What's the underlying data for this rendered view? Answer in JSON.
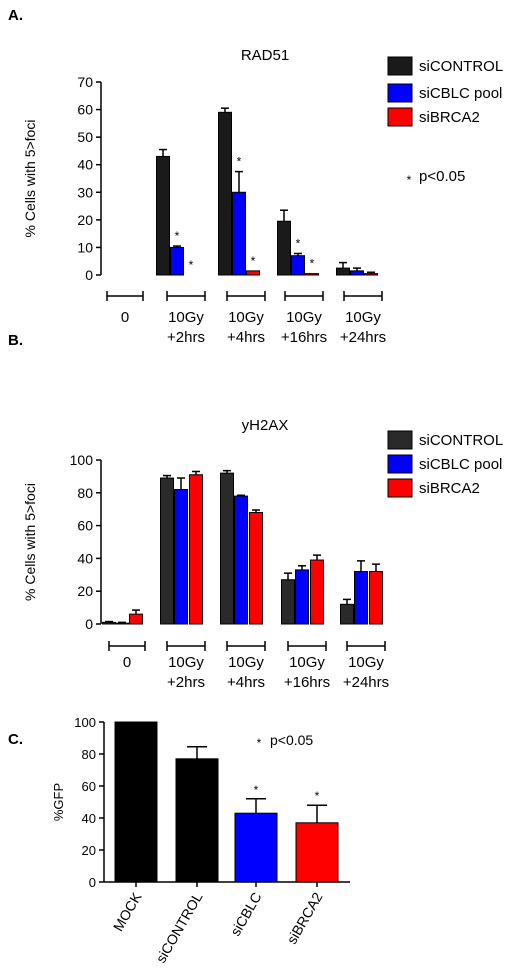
{
  "colors": {
    "siCONTROL": "#000000",
    "siCBLC": "#0000ff",
    "siBRCA2": "#ff0000",
    "mock": "#000000",
    "rad51_control": "#1a1a1a",
    "yh2ax_control": "#2a2a2a"
  },
  "chart_data": [
    {
      "panel_label": "A.",
      "type": "bar",
      "title": "RAD51",
      "ylabel": "% Cells with 5>foci",
      "ylim": [
        0,
        70
      ],
      "yticks": [
        0,
        10,
        20,
        30,
        40,
        50,
        60,
        70
      ],
      "categories": [
        [
          "0"
        ],
        [
          "10Gy",
          "+2hrs"
        ],
        [
          "10Gy",
          "+4hrs"
        ],
        [
          "10Gy",
          "+16hrs"
        ],
        [
          "10Gy",
          "+24hrs"
        ]
      ],
      "legend_position": "right",
      "series": [
        {
          "name": "siCONTROL",
          "color": "#1a1a1a",
          "values": [
            0,
            43,
            59,
            19.5,
            2.5
          ],
          "errors": [
            0,
            2.5,
            1.5,
            4,
            2
          ]
        },
        {
          "name": "siCBLC pool",
          "color": "#0000ff",
          "values": [
            0,
            10,
            30,
            7,
            1.5
          ],
          "errors": [
            0,
            0.5,
            7.5,
            0.8,
            1
          ]
        },
        {
          "name": "siBRCA2",
          "color": "#ff0000",
          "values": [
            0,
            0,
            1.5,
            0.5,
            0.5
          ],
          "errors": [
            0,
            0,
            0,
            0,
            0.5
          ]
        }
      ],
      "significance": [
        {
          "category": 1,
          "series": 1,
          "label": "*"
        },
        {
          "category": 1,
          "series": 2,
          "label": "*"
        },
        {
          "category": 2,
          "series": 1,
          "label": "*"
        },
        {
          "category": 2,
          "series": 2,
          "label": "*"
        },
        {
          "category": 3,
          "series": 1,
          "label": "*"
        },
        {
          "category": 3,
          "series": 2,
          "label": "*"
        }
      ],
      "annotation": {
        "star": "*",
        "text": "p<0.05"
      }
    },
    {
      "panel_label": "B.",
      "type": "bar",
      "title": "yH2AX",
      "ylabel": "% Cells with 5>foci",
      "ylim": [
        0,
        100
      ],
      "yticks": [
        0,
        20,
        40,
        60,
        80,
        100
      ],
      "categories": [
        [
          "0"
        ],
        [
          "10Gy",
          "+2hrs"
        ],
        [
          "10Gy",
          "+4hrs"
        ],
        [
          "10Gy",
          "+16hrs"
        ],
        [
          "10Gy",
          "+24hrs"
        ]
      ],
      "legend_position": "right",
      "series": [
        {
          "name": "siCONTROL",
          "color": "#2a2a2a",
          "values": [
            1,
            89,
            92,
            27,
            12
          ],
          "errors": [
            0.5,
            1.5,
            1.5,
            4,
            3
          ]
        },
        {
          "name": "siCBLC pool",
          "color": "#0000ff",
          "values": [
            0.5,
            82,
            78,
            33,
            32
          ],
          "errors": [
            0.5,
            7,
            0.5,
            2.5,
            6.5
          ]
        },
        {
          "name": "siBRCA2",
          "color": "#ff0000",
          "values": [
            6,
            91,
            68,
            39,
            32
          ],
          "errors": [
            2.5,
            2,
            1.5,
            3,
            4.5
          ]
        }
      ]
    },
    {
      "panel_label": "C.",
      "type": "bar",
      "title": "",
      "ylabel": "%GFP",
      "ylim": [
        0,
        100
      ],
      "yticks": [
        0,
        20,
        40,
        60,
        80,
        100
      ],
      "categories": [
        "MOCK",
        "siCONTROL",
        "siCBLC",
        "siBRCA2"
      ],
      "values": [
        100,
        77,
        43,
        37
      ],
      "errors": [
        0,
        7.5,
        9,
        11
      ],
      "bar_colors": [
        "#000000",
        "#000000",
        "#0000ff",
        "#ff0000"
      ],
      "significance": [
        {
          "category": 2,
          "label": "*"
        },
        {
          "category": 3,
          "label": "*"
        }
      ],
      "annotation": {
        "star": "*",
        "text": "p<0.05"
      }
    }
  ]
}
